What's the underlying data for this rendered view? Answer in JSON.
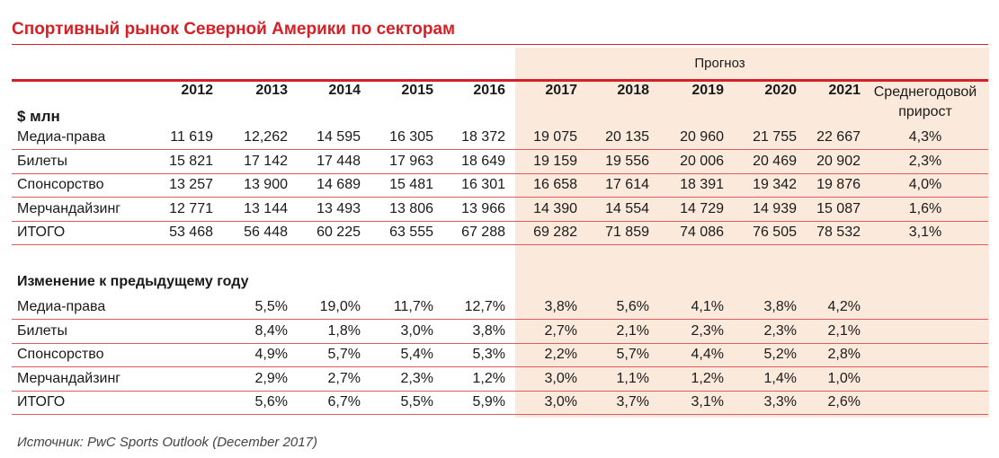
{
  "title": "Спортивный рынок Северной Америки по секторам",
  "forecast_label": "Прогноз",
  "years": [
    "2012",
    "2013",
    "2014",
    "2015",
    "2016",
    "2017",
    "2018",
    "2019",
    "2020",
    "2021"
  ],
  "avg_growth_header": "Среднегодовой прирост",
  "unit_header": "$ млн",
  "values_rows": [
    {
      "label": "Медиа-права",
      "values": [
        "11 619",
        "12,262",
        "14 595",
        "16 305",
        "18 372",
        "19 075",
        "20 135",
        "20 960",
        "21 755",
        "22 667"
      ],
      "avg": "4,3%"
    },
    {
      "label": "Билеты",
      "values": [
        "15 821",
        "17 142",
        "17 448",
        "17 963",
        "18 649",
        "19 159",
        "19 556",
        "20 006",
        "20 469",
        "20 902"
      ],
      "avg": "2,3%"
    },
    {
      "label": "Спонсорство",
      "values": [
        "13 257",
        "13 900",
        "14 689",
        "15 481",
        "16 301",
        "16 658",
        "17 614",
        "18 391",
        "19 342",
        "19 876"
      ],
      "avg": "4,0%"
    },
    {
      "label": "Мерчандайзинг",
      "values": [
        "12 771",
        "13 144",
        "13 493",
        "13 806",
        "13 966",
        "14 390",
        "14 554",
        "14 729",
        "14 939",
        "15 087"
      ],
      "avg": "1,6%"
    },
    {
      "label": "ИТОГО",
      "values": [
        "53 468",
        "56 448",
        "60 225",
        "63 555",
        "67 288",
        "69 282",
        "71 859",
        "74 086",
        "76 505",
        "78 532"
      ],
      "avg": "3,1%"
    }
  ],
  "change_header": "Изменение к предыдущему году",
  "change_rows": [
    {
      "label": "Медиа-права",
      "values": [
        "",
        "5,5%",
        "19,0%",
        "11,7%",
        "12,7%",
        "3,8%",
        "5,6%",
        "4,1%",
        "3,8%",
        "4,2%"
      ]
    },
    {
      "label": "Билеты",
      "values": [
        "",
        "8,4%",
        "1,8%",
        "3,0%",
        "3,8%",
        "2,7%",
        "2,1%",
        "2,3%",
        "2,3%",
        "2,1%"
      ]
    },
    {
      "label": "Спонсорство",
      "values": [
        "",
        "4,9%",
        "5,7%",
        "5,4%",
        "5,3%",
        "2,2%",
        "5,7%",
        "4,4%",
        "5,2%",
        "2,8%"
      ]
    },
    {
      "label": "Мерчандайзинг",
      "values": [
        "",
        "2,9%",
        "2,7%",
        "2,3%",
        "1,2%",
        "3,0%",
        "1,1%",
        "1,2%",
        "1,4%",
        "1,0%"
      ]
    },
    {
      "label": "ИТОГО",
      "values": [
        "",
        "5,6%",
        "6,7%",
        "5,5%",
        "5,9%",
        "3,0%",
        "3,7%",
        "3,1%",
        "3,3%",
        "2,6%"
      ]
    }
  ],
  "source": "Источник: PwC Sports Outlook (December 2017)",
  "colors": {
    "accent": "#d42027",
    "forecast_bg": "#fbeadb"
  }
}
